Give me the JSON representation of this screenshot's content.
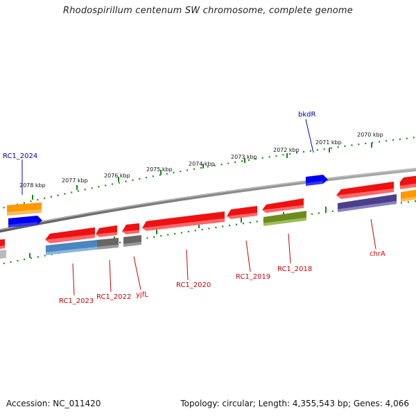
{
  "title": "Rhodospirillum centenum SW chromosome, complete genome",
  "footer": {
    "accession": "Accession: NC_011420",
    "summary": "Topology: circular; Length: 4,355,543 bp; Genes: 4,066"
  },
  "kbp_labels": [
    "2078 kbp",
    "2077 kbp",
    "2076 kbp",
    "2075 kbp",
    "2074 kbp",
    "2073 kbp",
    "2072 kbp",
    "2071 kbp",
    "2070 kbp"
  ],
  "gene_labels": {
    "rc1_2024": "RC1_2024",
    "bkdr": "bkdR",
    "rc1_2023": "RC1_2023",
    "rc1_2022": "RC1_2022",
    "yjfl": "yjfL",
    "rc1_2020": "RC1_2020",
    "rc1_2019": "RC1_2019",
    "rc1_2018": "RC1_2018",
    "chra": "chrA"
  },
  "colors": {
    "red": "#ee1111",
    "blue": "#0000ee",
    "orange": "#ff9900",
    "steelblue": "#4a86c0",
    "gray": "#666666",
    "olive": "#6e8c1e",
    "purple": "#4b3f8c",
    "backbone": "#888888",
    "ticks": "#118811",
    "label_red": "#cc0000",
    "label_blue": "#0000aa"
  }
}
